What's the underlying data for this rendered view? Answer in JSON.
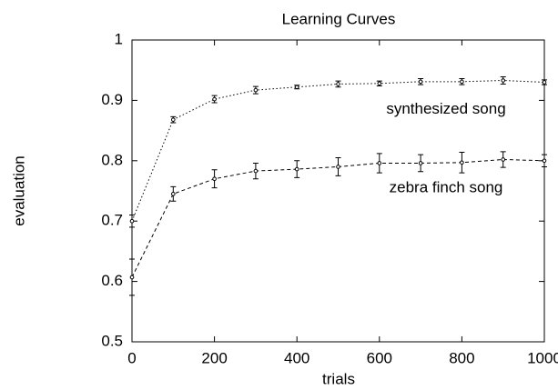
{
  "chart_data": {
    "type": "line",
    "title": "Learning Curves",
    "x_label": "trials",
    "y_label": "evaluation",
    "x": [
      0,
      100,
      200,
      300,
      400,
      500,
      600,
      700,
      800,
      900,
      1000
    ],
    "series": [
      {
        "name": "synthesized song",
        "color": "#000000",
        "dash": "1.5 2.5",
        "values": [
          0.7,
          0.868,
          0.902,
          0.917,
          0.922,
          0.927,
          0.928,
          0.931,
          0.931,
          0.933,
          0.93
        ],
        "errors": [
          0.01,
          0.005,
          0.006,
          0.006,
          0.003,
          0.005,
          0.004,
          0.005,
          0.005,
          0.006,
          0.004
        ]
      },
      {
        "name": "zebra finch song",
        "color": "#000000",
        "dash": "4 3",
        "values": [
          0.607,
          0.745,
          0.77,
          0.783,
          0.786,
          0.79,
          0.796,
          0.796,
          0.797,
          0.802,
          0.8
        ],
        "errors": [
          0.03,
          0.012,
          0.015,
          0.013,
          0.014,
          0.015,
          0.016,
          0.014,
          0.017,
          0.013,
          0.01
        ]
      }
    ],
    "xlim": [
      0,
      1000
    ],
    "xticks": [
      0,
      200,
      400,
      600,
      800,
      1000
    ],
    "ylim": [
      0.5,
      1
    ],
    "yticks": [
      0.5,
      0.6,
      0.7,
      0.8,
      0.9,
      1
    ]
  }
}
